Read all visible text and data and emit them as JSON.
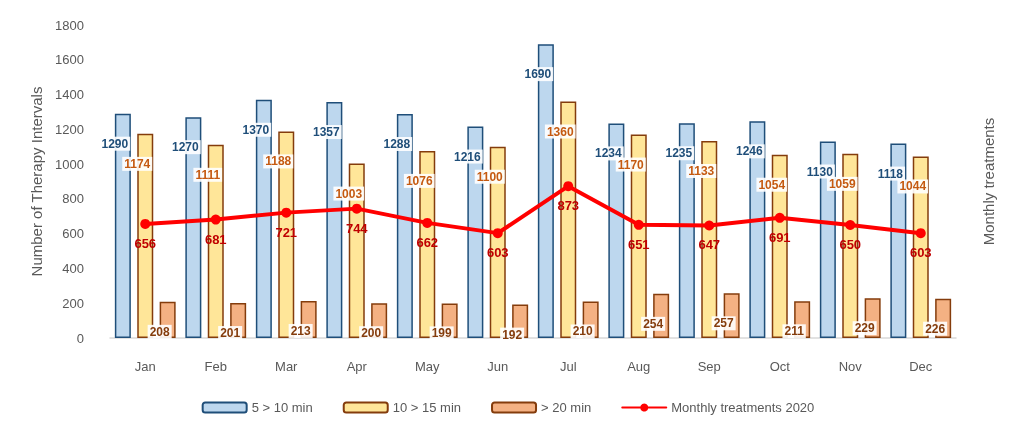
{
  "chart_data": {
    "type": "bar",
    "ylabel": "Number of Therapy Intervals",
    "y2label": "Monthly treatments",
    "categories": [
      "Jan",
      "Feb",
      "Mar",
      "Apr",
      "May",
      "Jun",
      "Jul",
      "Aug",
      "Sep",
      "Oct",
      "Nov",
      "Dec"
    ],
    "series": [
      {
        "name": "5 > 10 min",
        "color": "#bdd7ee",
        "values": [
          1290,
          1270,
          1370,
          1357,
          1288,
          1216,
          1690,
          1234,
          1235,
          1246,
          1130,
          1118
        ]
      },
      {
        "name": "10 > 15 min",
        "color": "#ffe699",
        "values": [
          1174,
          1111,
          1188,
          1003,
          1076,
          1100,
          1360,
          1170,
          1133,
          1054,
          1059,
          1044
        ]
      },
      {
        "name": "> 20 min",
        "color": "#f4b183",
        "values": [
          208,
          201,
          213,
          200,
          199,
          192,
          210,
          254,
          257,
          211,
          229,
          226
        ]
      },
      {
        "name": "Monthly treatments 2020",
        "type": "line",
        "color": "#ff0000",
        "marker": "circle",
        "values": [
          656,
          681,
          721,
          744,
          662,
          603,
          873,
          651,
          647,
          691,
          650,
          603
        ]
      }
    ],
    "ylim": [
      0,
      1800
    ],
    "yticks": [
      0,
      200,
      400,
      600,
      800,
      1000,
      1200,
      1400,
      1600,
      1800
    ],
    "grid": false,
    "legend": "bottom",
    "data_labels": true
  }
}
